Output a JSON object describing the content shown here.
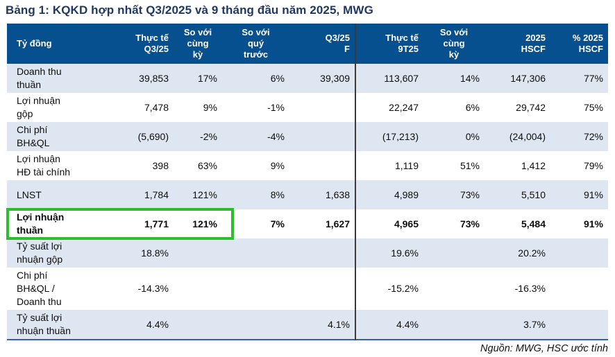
{
  "title": "Bảng 1: KQKD hợp nhất Q3/2025 và 9 tháng đầu năm 2025, MWG",
  "source_note": "Nguồn: MWG, HSC ước tính",
  "colors": {
    "header_bg": "#07508F",
    "title_text": "#1F3864",
    "row_alt": "#DEE6F1",
    "highlight_green": "#2DBE2D",
    "divider": "#3A3A3A",
    "table_border": "#2E64A5"
  },
  "table": {
    "columns": [
      {
        "label": "Tỷ đồng",
        "align": "left"
      },
      {
        "label": "Thực tế\nQ3/25",
        "align": "right"
      },
      {
        "label": "So với\ncùng\nkỳ",
        "align": "center"
      },
      {
        "label": "So với\nquý\ntrước",
        "align": "center"
      },
      {
        "label": "Q3/25\nF",
        "align": "right"
      },
      {
        "label": "Thực tế\n9T25",
        "align": "right"
      },
      {
        "label": "So với\ncùng\nkỳ",
        "align": "center"
      },
      {
        "label": "2025\nHSCF",
        "align": "right"
      },
      {
        "label": "% 2025\nHSCF",
        "align": "right"
      }
    ],
    "rows": [
      {
        "label": "Doanh thu\nthuần",
        "cells": [
          "39,853",
          "17%",
          "6%",
          "39,309",
          "113,607",
          "14%",
          "147,306",
          "77%"
        ],
        "shade": true
      },
      {
        "label": "Lợi nhuận\ngộp",
        "cells": [
          "7,478",
          "9%",
          "-1%",
          "",
          "22,247",
          "6%",
          "29,742",
          "75%"
        ]
      },
      {
        "label": "Chi phí\nBH&QL",
        "cells": [
          "(5,690)",
          "-2%",
          "-4%",
          "",
          "(17,213)",
          "0%",
          "(24,004)",
          "72%"
        ],
        "shade": true
      },
      {
        "label": "Lợi nhuận\nHĐ tài chính",
        "cells": [
          "398",
          "63%",
          "9%",
          "",
          "1,119",
          "51%",
          "1,412",
          "79%"
        ]
      },
      {
        "label": "LNST",
        "cells": [
          "1,784",
          "121%",
          "8%",
          "1,638",
          "4,989",
          "73%",
          "5,510",
          "91%"
        ],
        "shade": true
      },
      {
        "label": "Lợi nhuận\nthuần",
        "cells": [
          "1,771",
          "121%",
          "7%",
          "1,627",
          "4,965",
          "73%",
          "5,484",
          "91%"
        ],
        "bold": true,
        "highlight": true
      },
      {
        "label": "Tỷ suất lợi\nnhuận gộp",
        "cells": [
          "18.8%",
          "",
          "",
          "",
          "19.6%",
          "",
          "20.2%",
          ""
        ],
        "shade": true
      },
      {
        "label": "Chi phí\nBH&QL /\nDoanh thu",
        "cells": [
          "-14.3%",
          "",
          "",
          "",
          "-15.2%",
          "",
          "-16.3%",
          ""
        ]
      },
      {
        "label": "Tỷ suất lợi\nnhuận thuần",
        "cells": [
          "4.4%",
          "",
          "",
          "4.1%",
          "4.4%",
          "",
          "3.7%",
          ""
        ],
        "shade": true
      }
    ]
  }
}
